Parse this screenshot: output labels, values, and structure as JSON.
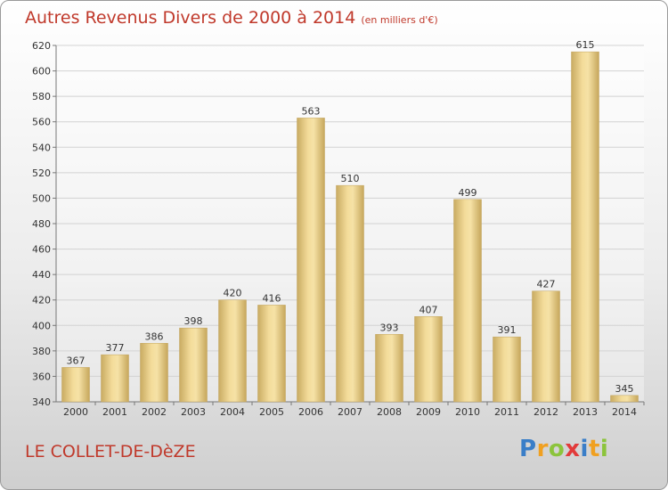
{
  "chart_data": {
    "type": "bar",
    "title": "Autres Revenus Divers de 2000 à 2014",
    "subtitle": "(en milliers d'€)",
    "categories": [
      "2000",
      "2001",
      "2002",
      "2003",
      "2004",
      "2005",
      "2006",
      "2007",
      "2008",
      "2009",
      "2010",
      "2011",
      "2012",
      "2013",
      "2014"
    ],
    "values": [
      367,
      377,
      386,
      398,
      420,
      416,
      563,
      510,
      393,
      407,
      499,
      391,
      427,
      615,
      345
    ],
    "ylim": [
      340,
      620
    ],
    "yticks": [
      340,
      360,
      380,
      400,
      420,
      440,
      460,
      480,
      500,
      520,
      540,
      560,
      580,
      600,
      620
    ],
    "grid": true,
    "bar_color": "#e3c77f"
  },
  "footer": {
    "town": "LE COLLET-DE-DèZE",
    "logo": "Proxiti"
  }
}
